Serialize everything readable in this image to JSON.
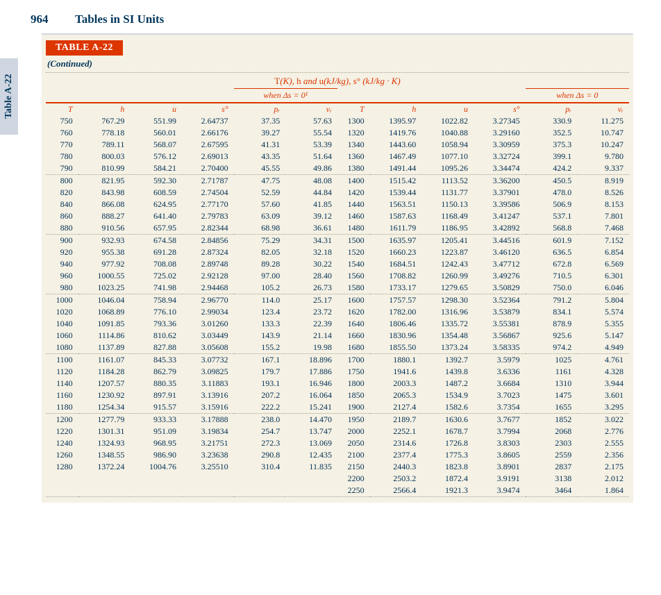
{
  "page": {
    "number": "964",
    "title": "Tables in SI Units",
    "sidetab": "Table A-22"
  },
  "table": {
    "label": "TABLE A-22",
    "continued": "(Continued)",
    "caption_html": "T(K), h and u(kJ/kg), s° (kJ/kg · K)",
    "when_left": "when Δs = 0¹",
    "when_right": "when Δs = 0",
    "colheads": {
      "T": "T",
      "h": "h",
      "u": "u",
      "s": "s°",
      "pr": "pᵣ",
      "vr": "vᵣ"
    },
    "blocksL": [
      [
        [
          "750",
          "767.29",
          "551.99",
          "2.64737",
          "37.35",
          "57.63"
        ],
        [
          "760",
          "778.18",
          "560.01",
          "2.66176",
          "39.27",
          "55.54"
        ],
        [
          "770",
          "789.11",
          "568.07",
          "2.67595",
          "41.31",
          "53.39"
        ],
        [
          "780",
          "800.03",
          "576.12",
          "2.69013",
          "43.35",
          "51.64"
        ],
        [
          "790",
          "810.99",
          "584.21",
          "2.70400",
          "45.55",
          "49.86"
        ]
      ],
      [
        [
          "800",
          "821.95",
          "592.30",
          "2.71787",
          "47.75",
          "48.08"
        ],
        [
          "820",
          "843.98",
          "608.59",
          "2.74504",
          "52.59",
          "44.84"
        ],
        [
          "840",
          "866.08",
          "624.95",
          "2.77170",
          "57.60",
          "41.85"
        ],
        [
          "860",
          "888.27",
          "641.40",
          "2.79783",
          "63.09",
          "39.12"
        ],
        [
          "880",
          "910.56",
          "657.95",
          "2.82344",
          "68.98",
          "36.61"
        ]
      ],
      [
        [
          "900",
          "932.93",
          "674.58",
          "2.84856",
          "75.29",
          "34.31"
        ],
        [
          "920",
          "955.38",
          "691.28",
          "2.87324",
          "82.05",
          "32.18"
        ],
        [
          "940",
          "977.92",
          "708.08",
          "2.89748",
          "89.28",
          "30.22"
        ],
        [
          "960",
          "1000.55",
          "725.02",
          "2.92128",
          "97.00",
          "28.40"
        ],
        [
          "980",
          "1023.25",
          "741.98",
          "2.94468",
          "105.2",
          "26.73"
        ]
      ],
      [
        [
          "1000",
          "1046.04",
          "758.94",
          "2.96770",
          "114.0",
          "25.17"
        ],
        [
          "1020",
          "1068.89",
          "776.10",
          "2.99034",
          "123.4",
          "23.72"
        ],
        [
          "1040",
          "1091.85",
          "793.36",
          "3.01260",
          "133.3",
          "22.39"
        ],
        [
          "1060",
          "1114.86",
          "810.62",
          "3.03449",
          "143.9",
          "21.14"
        ],
        [
          "1080",
          "1137.89",
          "827.88",
          "3.05608",
          "155.2",
          "19.98"
        ]
      ],
      [
        [
          "1100",
          "1161.07",
          "845.33",
          "3.07732",
          "167.1",
          "18.896"
        ],
        [
          "1120",
          "1184.28",
          "862.79",
          "3.09825",
          "179.7",
          "17.886"
        ],
        [
          "1140",
          "1207.57",
          "880.35",
          "3.11883",
          "193.1",
          "16.946"
        ],
        [
          "1160",
          "1230.92",
          "897.91",
          "3.13916",
          "207.2",
          "16.064"
        ],
        [
          "1180",
          "1254.34",
          "915.57",
          "3.15916",
          "222.2",
          "15.241"
        ]
      ],
      [
        [
          "1200",
          "1277.79",
          "933.33",
          "3.17888",
          "238.0",
          "14.470"
        ],
        [
          "1220",
          "1301.31",
          "951.09",
          "3.19834",
          "254.7",
          "13.747"
        ],
        [
          "1240",
          "1324.93",
          "968.95",
          "3.21751",
          "272.3",
          "13.069"
        ],
        [
          "1260",
          "1348.55",
          "986.90",
          "3.23638",
          "290.8",
          "12.435"
        ],
        [
          "1280",
          "1372.24",
          "1004.76",
          "3.25510",
          "310.4",
          "11.835"
        ]
      ]
    ],
    "blocksR": [
      [
        [
          "1300",
          "1395.97",
          "1022.82",
          "3.27345",
          "330.9",
          "11.275"
        ],
        [
          "1320",
          "1419.76",
          "1040.88",
          "3.29160",
          "352.5",
          "10.747"
        ],
        [
          "1340",
          "1443.60",
          "1058.94",
          "3.30959",
          "375.3",
          "10.247"
        ],
        [
          "1360",
          "1467.49",
          "1077.10",
          "3.32724",
          "399.1",
          "9.780"
        ],
        [
          "1380",
          "1491.44",
          "1095.26",
          "3.34474",
          "424.2",
          "9.337"
        ]
      ],
      [
        [
          "1400",
          "1515.42",
          "1113.52",
          "3.36200",
          "450.5",
          "8.919"
        ],
        [
          "1420",
          "1539.44",
          "1131.77",
          "3.37901",
          "478.0",
          "8.526"
        ],
        [
          "1440",
          "1563.51",
          "1150.13",
          "3.39586",
          "506.9",
          "8.153"
        ],
        [
          "1460",
          "1587.63",
          "1168.49",
          "3.41247",
          "537.1",
          "7.801"
        ],
        [
          "1480",
          "1611.79",
          "1186.95",
          "3.42892",
          "568.8",
          "7.468"
        ]
      ],
      [
        [
          "1500",
          "1635.97",
          "1205.41",
          "3.44516",
          "601.9",
          "7.152"
        ],
        [
          "1520",
          "1660.23",
          "1223.87",
          "3.46120",
          "636.5",
          "6.854"
        ],
        [
          "1540",
          "1684.51",
          "1242.43",
          "3.47712",
          "672.8",
          "6.569"
        ],
        [
          "1560",
          "1708.82",
          "1260.99",
          "3.49276",
          "710.5",
          "6.301"
        ],
        [
          "1580",
          "1733.17",
          "1279.65",
          "3.50829",
          "750.0",
          "6.046"
        ]
      ],
      [
        [
          "1600",
          "1757.57",
          "1298.30",
          "3.52364",
          "791.2",
          "5.804"
        ],
        [
          "1620",
          "1782.00",
          "1316.96",
          "3.53879",
          "834.1",
          "5.574"
        ],
        [
          "1640",
          "1806.46",
          "1335.72",
          "3.55381",
          "878.9",
          "5.355"
        ],
        [
          "1660",
          "1830.96",
          "1354.48",
          "3.56867",
          "925.6",
          "5.147"
        ],
        [
          "1680",
          "1855.50",
          "1373.24",
          "3.58335",
          "974.2",
          "4.949"
        ]
      ],
      [
        [
          "1700",
          "1880.1",
          "1392.7",
          "3.5979",
          "1025",
          "4.761"
        ],
        [
          "1750",
          "1941.6",
          "1439.8",
          "3.6336",
          "1161",
          "4.328"
        ],
        [
          "1800",
          "2003.3",
          "1487.2",
          "3.6684",
          "1310",
          "3.944"
        ],
        [
          "1850",
          "2065.3",
          "1534.9",
          "3.7023",
          "1475",
          "3.601"
        ],
        [
          "1900",
          "2127.4",
          "1582.6",
          "3.7354",
          "1655",
          "3.295"
        ]
      ],
      [
        [
          "1950",
          "2189.7",
          "1630.6",
          "3.7677",
          "1852",
          "3.022"
        ],
        [
          "2000",
          "2252.1",
          "1678.7",
          "3.7994",
          "2068",
          "2.776"
        ],
        [
          "2050",
          "2314.6",
          "1726.8",
          "3.8303",
          "2303",
          "2.555"
        ],
        [
          "2100",
          "2377.4",
          "1775.3",
          "3.8605",
          "2559",
          "2.356"
        ],
        [
          "2150",
          "2440.3",
          "1823.8",
          "3.8901",
          "2837",
          "2.175"
        ],
        [
          "2200",
          "2503.2",
          "1872.4",
          "3.9191",
          "3138",
          "2.012"
        ],
        [
          "2250",
          "2566.4",
          "1921.3",
          "3.9474",
          "3464",
          "1.864"
        ]
      ]
    ]
  },
  "style": {
    "accent": "#dd3500",
    "ink": "#00365a",
    "panel": "#f5f1e4",
    "fontBody": 12,
    "fontHead": 17
  }
}
